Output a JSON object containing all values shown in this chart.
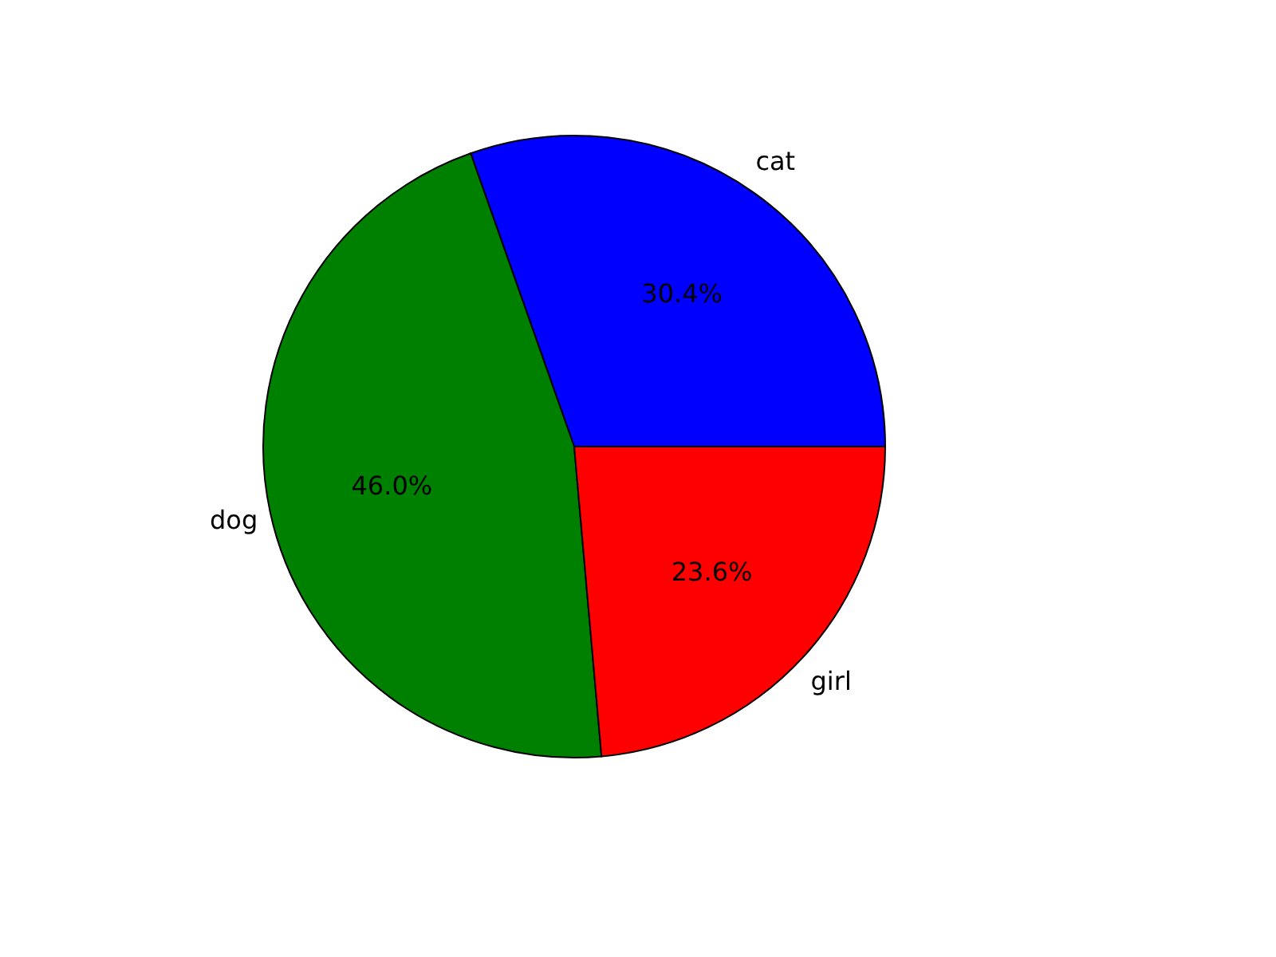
{
  "chart_data": {
    "type": "pie",
    "categories": [
      "cat",
      "dog",
      "girl"
    ],
    "values": [
      30.4,
      46.0,
      23.6
    ],
    "value_labels": [
      "30.4%",
      "46.0%",
      "23.6%"
    ],
    "colors": [
      "#0000ff",
      "#008000",
      "#ff0000"
    ],
    "legend": false
  }
}
